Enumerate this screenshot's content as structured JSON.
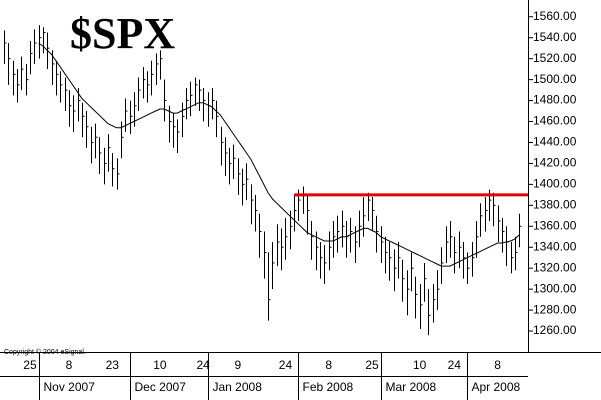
{
  "chart_data": {
    "type": "hlc",
    "title": "$SPX",
    "copyright": "Copyright © 2004 eSignal.",
    "bar_color": "#000000",
    "categories": [
      null,
      null,
      null,
      null,
      null,
      null,
      "25",
      null,
      null,
      null,
      null,
      null,
      null,
      null,
      null,
      "8",
      null,
      null,
      null,
      null,
      null,
      null,
      null,
      null,
      null,
      "23",
      null,
      null,
      null,
      null,
      null,
      null,
      null,
      null,
      null,
      null,
      "10",
      null,
      null,
      null,
      null,
      null,
      null,
      null,
      null,
      null,
      "24",
      null,
      null,
      null,
      null,
      null,
      null,
      null,
      "9",
      null,
      null,
      null,
      null,
      null,
      null,
      null,
      null,
      null,
      null,
      "24",
      null,
      null,
      null,
      null,
      null,
      null,
      null,
      null,
      null,
      "8",
      null,
      null,
      null,
      null,
      null,
      null,
      null,
      null,
      null,
      "25",
      null,
      null,
      null,
      null,
      null,
      null,
      null,
      null,
      null,
      null,
      "10",
      null,
      null,
      null,
      null,
      null,
      null,
      null,
      "24",
      null,
      null,
      null,
      null,
      null,
      null,
      null,
      null,
      null,
      "8",
      null,
      null,
      null,
      null,
      null
    ],
    "months": [
      null,
      null,
      null,
      null,
      null,
      null,
      null,
      null,
      "Nov 2007",
      null,
      null,
      null,
      null,
      null,
      null,
      null,
      null,
      null,
      null,
      null,
      null,
      null,
      null,
      null,
      null,
      null,
      null,
      null,
      null,
      "Dec 2007",
      null,
      null,
      null,
      null,
      null,
      null,
      null,
      null,
      null,
      null,
      null,
      null,
      null,
      null,
      null,
      null,
      null,
      "Jan 2008",
      null,
      null,
      null,
      null,
      null,
      null,
      null,
      null,
      null,
      null,
      null,
      null,
      null,
      null,
      null,
      null,
      null,
      null,
      null,
      null,
      "Feb 2008",
      null,
      null,
      null,
      null,
      null,
      null,
      null,
      null,
      null,
      null,
      null,
      null,
      null,
      null,
      null,
      null,
      null,
      null,
      "Mar 2008",
      null,
      null,
      null,
      null,
      null,
      null,
      null,
      null,
      null,
      null,
      null,
      null,
      null,
      null,
      null,
      null,
      null,
      null,
      null,
      "Apr 2008",
      null,
      null,
      null,
      null,
      null,
      null,
      null,
      null,
      null,
      null,
      null,
      null
    ],
    "high": [
      1547,
      1535,
      1518,
      1510,
      1522,
      1515,
      1537,
      1548,
      1552,
      1550,
      1545,
      1528,
      1518,
      1508,
      1502,
      1490,
      1485,
      1492,
      1478,
      1470,
      1455,
      1458,
      1445,
      1435,
      1448,
      1430,
      1425,
      1460,
      1482,
      1480,
      1488,
      1502,
      1512,
      1508,
      1518,
      1525,
      1528,
      1500,
      1475,
      1468,
      1462,
      1478,
      1492,
      1498,
      1502,
      1500,
      1492,
      1488,
      1492,
      1480,
      1455,
      1445,
      1435,
      1438,
      1425,
      1415,
      1420,
      1400,
      1390,
      1372,
      1355,
      1335,
      1345,
      1362,
      1358,
      1368,
      1375,
      1390,
      1395,
      1398,
      1390,
      1365,
      1355,
      1345,
      1342,
      1355,
      1365,
      1370,
      1375,
      1365,
      1368,
      1360,
      1375,
      1388,
      1392,
      1388,
      1370,
      1360,
      1350,
      1345,
      1338,
      1345,
      1328,
      1318,
      1335,
      1312,
      1305,
      1325,
      1300,
      1305,
      1318,
      1340,
      1360,
      1365,
      1350,
      1355,
      1345,
      1335,
      1345,
      1365,
      1382,
      1388,
      1395,
      1392,
      1380,
      1368,
      1360,
      1345,
      1350,
      1372
    ],
    "low": [
      1515,
      1495,
      1485,
      1478,
      1490,
      1485,
      1505,
      1515,
      1520,
      1525,
      1510,
      1495,
      1485,
      1478,
      1470,
      1455,
      1450,
      1460,
      1445,
      1435,
      1420,
      1425,
      1410,
      1400,
      1412,
      1398,
      1395,
      1425,
      1450,
      1448,
      1455,
      1470,
      1482,
      1478,
      1485,
      1495,
      1500,
      1460,
      1440,
      1435,
      1430,
      1445,
      1462,
      1465,
      1475,
      1470,
      1460,
      1455,
      1462,
      1445,
      1418,
      1408,
      1400,
      1405,
      1390,
      1380,
      1385,
      1362,
      1355,
      1330,
      1310,
      1270,
      1300,
      1322,
      1318,
      1328,
      1338,
      1355,
      1365,
      1372,
      1352,
      1328,
      1318,
      1310,
      1305,
      1318,
      1330,
      1335,
      1340,
      1330,
      1335,
      1325,
      1340,
      1350,
      1365,
      1355,
      1335,
      1325,
      1315,
      1308,
      1298,
      1310,
      1288,
      1275,
      1298,
      1272,
      1262,
      1288,
      1256,
      1268,
      1280,
      1305,
      1325,
      1330,
      1315,
      1320,
      1310,
      1305,
      1312,
      1330,
      1350,
      1355,
      1365,
      1360,
      1345,
      1335,
      1322,
      1315,
      1318,
      1340
    ],
    "close": [
      1535,
      1520,
      1505,
      1495,
      1510,
      1500,
      1525,
      1535,
      1540,
      1545,
      1530,
      1515,
      1505,
      1495,
      1490,
      1475,
      1470,
      1480,
      1465,
      1455,
      1440,
      1445,
      1430,
      1420,
      1435,
      1415,
      1410,
      1445,
      1470,
      1465,
      1475,
      1490,
      1500,
      1495,
      1505,
      1515,
      1520,
      1480,
      1460,
      1455,
      1450,
      1465,
      1480,
      1485,
      1495,
      1490,
      1480,
      1475,
      1480,
      1465,
      1440,
      1430,
      1420,
      1425,
      1410,
      1400,
      1405,
      1385,
      1375,
      1355,
      1335,
      1290,
      1325,
      1345,
      1340,
      1350,
      1360,
      1375,
      1385,
      1390,
      1375,
      1350,
      1340,
      1330,
      1325,
      1340,
      1350,
      1355,
      1360,
      1350,
      1355,
      1345,
      1360,
      1370,
      1385,
      1375,
      1355,
      1345,
      1335,
      1330,
      1320,
      1330,
      1310,
      1300,
      1320,
      1295,
      1285,
      1310,
      1275,
      1290,
      1300,
      1325,
      1345,
      1350,
      1335,
      1340,
      1330,
      1320,
      1330,
      1350,
      1370,
      1375,
      1385,
      1380,
      1365,
      1355,
      1345,
      1330,
      1335,
      1360
    ],
    "moving_average": {
      "color": "#000000",
      "values": [
        null,
        null,
        null,
        null,
        null,
        null,
        null,
        null,
        1535,
        1532,
        1528,
        1524,
        1518,
        1512,
        1506,
        1500,
        1494,
        1488,
        1482,
        1478,
        1474,
        1470,
        1466,
        1462,
        1458,
        1456,
        1454,
        1454,
        1456,
        1458,
        1460,
        1462,
        1464,
        1466,
        1468,
        1470,
        1472,
        1472,
        1470,
        1468,
        1468,
        1470,
        1472,
        1474,
        1476,
        1478,
        1478,
        1476,
        1474,
        1470,
        1466,
        1460,
        1454,
        1448,
        1442,
        1436,
        1430,
        1424,
        1416,
        1408,
        1400,
        1392,
        1386,
        1382,
        1378,
        1374,
        1370,
        1366,
        1362,
        1358,
        1354,
        1352,
        1350,
        1348,
        1346,
        1346,
        1346,
        1348,
        1350,
        1350,
        1352,
        1354,
        1356,
        1358,
        1358,
        1356,
        1354,
        1350,
        1348,
        1346,
        1344,
        1342,
        1340,
        1338,
        1336,
        1334,
        1332,
        1330,
        1328,
        1326,
        1324,
        1322,
        1322,
        1322,
        1324,
        1326,
        1328,
        1330,
        1332,
        1334,
        1336,
        1338,
        1340,
        1342,
        1344,
        1344,
        1345,
        1346,
        1348,
        1352
      ]
    },
    "hline": {
      "value": 1390,
      "start": 67,
      "color": "#e00000"
    },
    "ylim": [
      1240,
      1576
    ],
    "yticks": [
      {
        "value": 1260,
        "label": "1260.00"
      },
      {
        "value": 1280,
        "label": "1280.00"
      },
      {
        "value": 1300,
        "label": "1300.00"
      },
      {
        "value": 1320,
        "label": "1320.00"
      },
      {
        "value": 1340,
        "label": "1340.00"
      },
      {
        "value": 1360,
        "label": "1360.00"
      },
      {
        "value": 1380,
        "label": "1380.00"
      },
      {
        "value": 1400,
        "label": "1400.00"
      },
      {
        "value": 1420,
        "label": "1420.00"
      },
      {
        "value": 1440,
        "label": "1440.00"
      },
      {
        "value": 1460,
        "label": "1460.00"
      },
      {
        "value": 1480,
        "label": "1480.00"
      },
      {
        "value": 1500,
        "label": "1500.00"
      },
      {
        "value": 1520,
        "label": "1520.00"
      },
      {
        "value": 1540,
        "label": "1540.00"
      },
      {
        "value": 1560,
        "label": "1560.00"
      }
    ]
  }
}
